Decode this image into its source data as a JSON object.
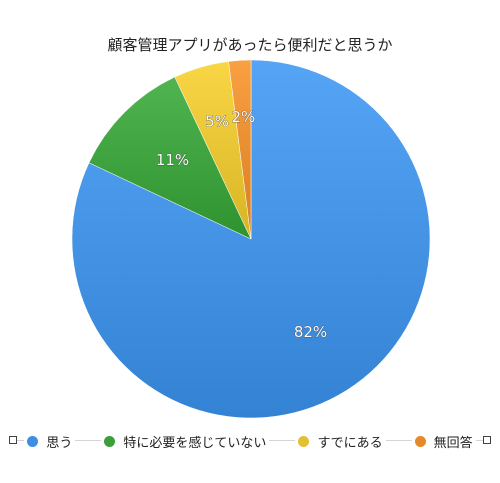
{
  "chart_data": {
    "type": "pie",
    "title": "顧客管理アプリがあったら便利だと思うか",
    "categories": [
      "思う",
      "特に必要を感じていない",
      "すでにある",
      "無回答"
    ],
    "values": [
      82,
      11,
      5,
      2
    ],
    "labels": [
      "82%",
      "11%",
      "5%",
      "2%"
    ],
    "colors": [
      "#3f8ee0",
      "#3a9e3a",
      "#e3c02f",
      "#e38a2c"
    ],
    "legend_position": "bottom"
  }
}
